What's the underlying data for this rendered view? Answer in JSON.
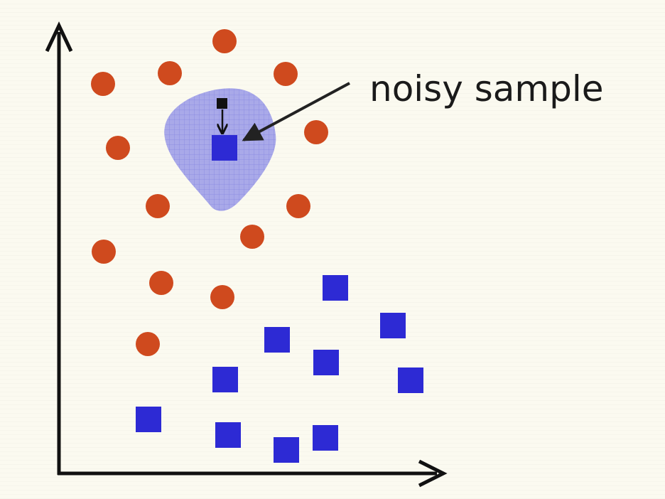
{
  "annotation": {
    "text": "noisy sample"
  },
  "colors": {
    "background": "#fbfaf0",
    "majority_class": "#cf4a1e",
    "minority_class": "#2d2ad4",
    "neighborhood": "#8f8fe6",
    "axes": "#111111",
    "arrow": "#222222"
  },
  "legend_semantics": {
    "circle": "majority-class-sample",
    "square": "minority-class-sample"
  }
}
